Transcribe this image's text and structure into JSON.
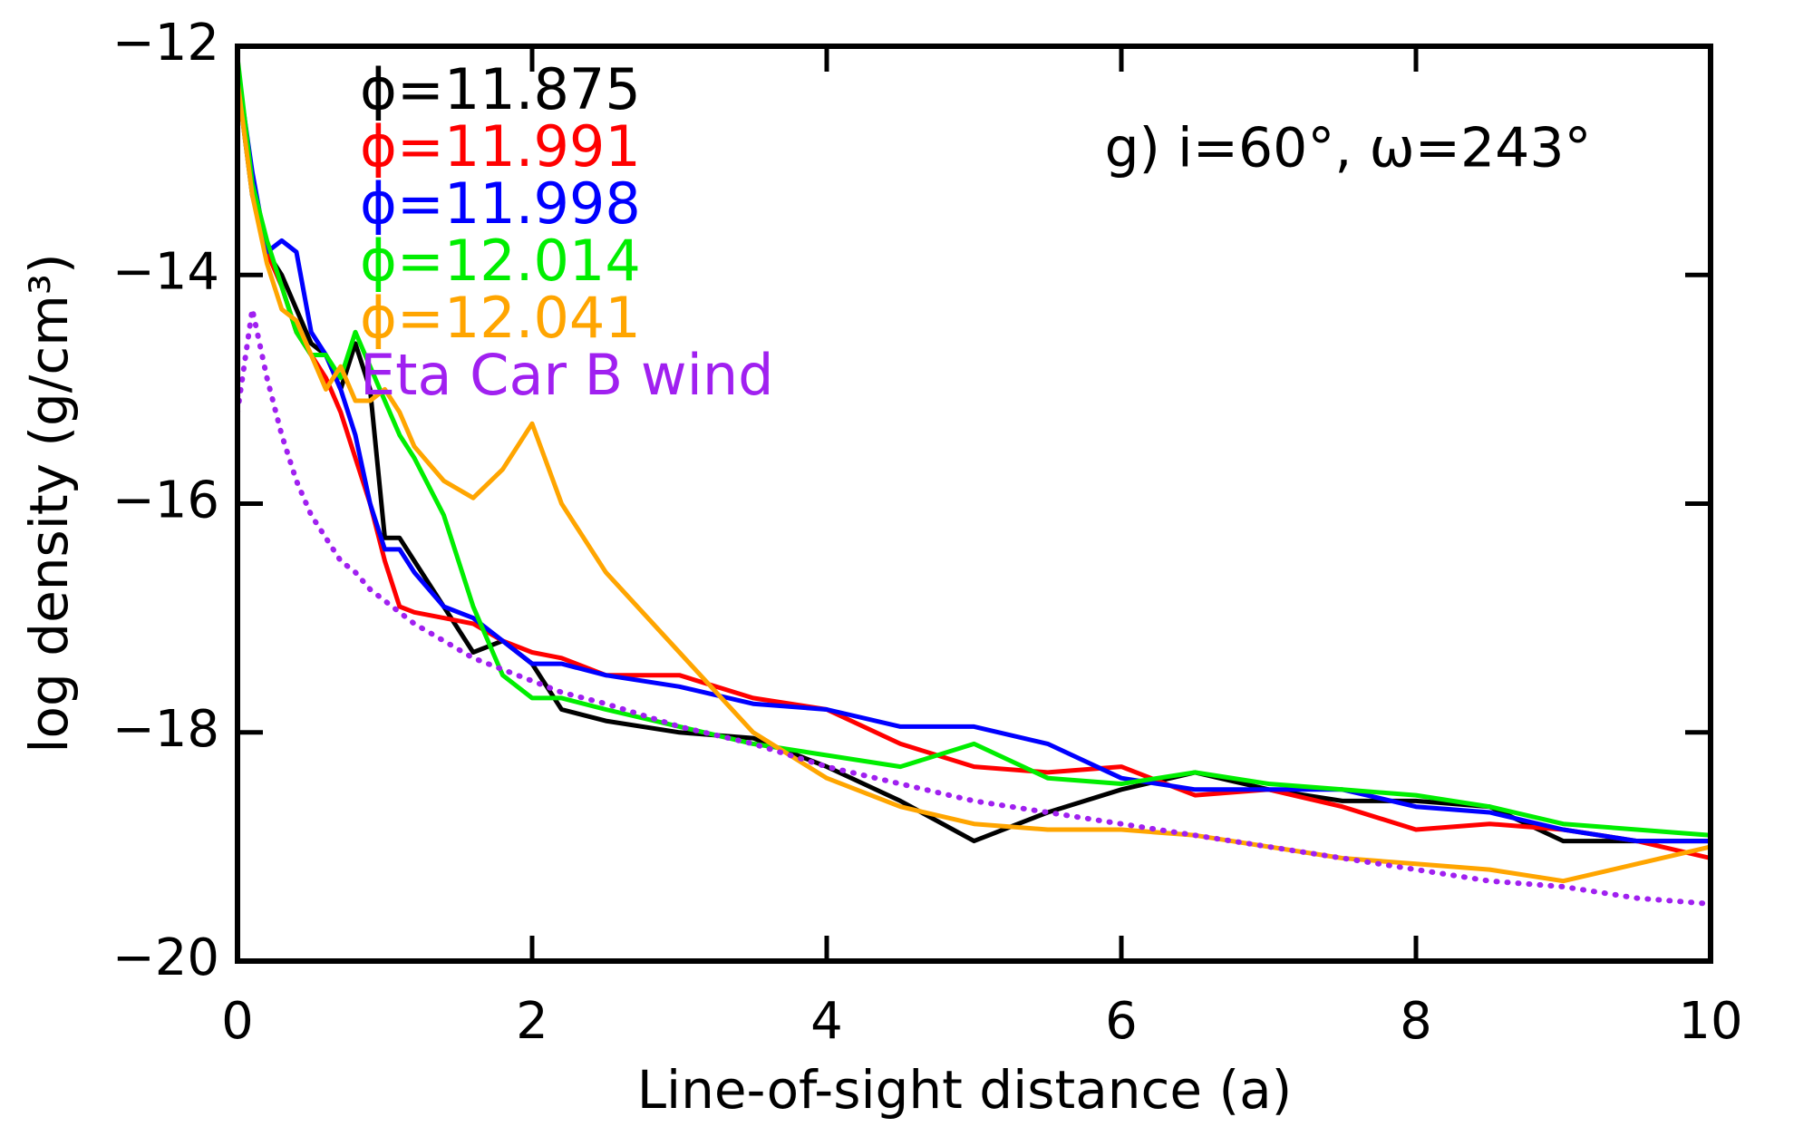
{
  "chart_data": {
    "type": "line",
    "x_label": "Line-of-sight distance (a)",
    "y_label": "log density (g/cm³)",
    "annotation": "g) i=60°, ω=243°",
    "xlim": [
      0,
      10
    ],
    "ylim": [
      -20,
      -12
    ],
    "xticks": [
      0,
      2,
      4,
      6,
      8,
      10
    ],
    "yticks": [
      {
        "value": -20,
        "label": "−20"
      },
      {
        "value": -18,
        "label": "−18"
      },
      {
        "value": -16,
        "label": "−16"
      },
      {
        "value": -14,
        "label": "−14"
      },
      {
        "value": -12,
        "label": "−12"
      }
    ],
    "x": [
      0,
      0.1,
      0.2,
      0.3,
      0.4,
      0.5,
      0.6,
      0.7,
      0.8,
      0.9,
      1.0,
      1.1,
      1.2,
      1.4,
      1.6,
      1.8,
      2.0,
      2.2,
      2.5,
      3,
      3.5,
      4,
      4.5,
      5,
      5.5,
      6,
      6.5,
      7,
      7.5,
      8,
      8.5,
      9,
      9.5,
      10
    ],
    "series": [
      {
        "name": "ϕ=11.875",
        "color": "#000000",
        "style": "solid",
        "values": [
          -12.3,
          -13.3,
          -13.8,
          -14.0,
          -14.3,
          -14.6,
          -14.7,
          -15.0,
          -14.6,
          -15.0,
          -16.3,
          -16.3,
          -16.5,
          -16.9,
          -17.3,
          -17.2,
          -17.4,
          -17.8,
          -17.9,
          -18.0,
          -18.05,
          -18.3,
          -18.6,
          -18.95,
          -18.7,
          -18.5,
          -18.35,
          -18.5,
          -18.6,
          -18.6,
          -18.65,
          -18.95,
          -18.95,
          -18.95
        ]
      },
      {
        "name": "ϕ=11.991",
        "color": "#ff0000",
        "style": "solid",
        "values": [
          -12.3,
          -13.2,
          -13.8,
          -14.1,
          -14.5,
          -14.7,
          -14.9,
          -15.2,
          -15.6,
          -16.0,
          -16.5,
          -16.9,
          -16.95,
          -17.0,
          -17.05,
          -17.2,
          -17.3,
          -17.35,
          -17.5,
          -17.5,
          -17.7,
          -17.8,
          -18.1,
          -18.3,
          -18.35,
          -18.3,
          -18.55,
          -18.5,
          -18.65,
          -18.85,
          -18.8,
          -18.85,
          -18.95,
          -19.1
        ]
      },
      {
        "name": "ϕ=11.998",
        "color": "#0000ff",
        "style": "solid",
        "values": [
          -12.2,
          -13.1,
          -13.8,
          -13.7,
          -13.8,
          -14.5,
          -14.7,
          -15.0,
          -15.4,
          -16.0,
          -16.4,
          -16.4,
          -16.6,
          -16.9,
          -17.0,
          -17.2,
          -17.4,
          -17.4,
          -17.5,
          -17.6,
          -17.75,
          -17.8,
          -17.95,
          -17.95,
          -18.1,
          -18.4,
          -18.5,
          -18.5,
          -18.5,
          -18.65,
          -18.7,
          -18.85,
          -18.95,
          -18.95
        ]
      },
      {
        "name": "ϕ=12.014",
        "color": "#00ee00",
        "style": "solid",
        "values": [
          -12.1,
          -13.2,
          -13.7,
          -14.1,
          -14.5,
          -14.7,
          -14.7,
          -14.9,
          -14.5,
          -14.8,
          -15.1,
          -15.4,
          -15.6,
          -16.1,
          -16.9,
          -17.5,
          -17.7,
          -17.7,
          -17.8,
          -17.95,
          -18.1,
          -18.2,
          -18.3,
          -18.1,
          -18.4,
          -18.45,
          -18.35,
          -18.45,
          -18.5,
          -18.55,
          -18.65,
          -18.8,
          -18.85,
          -18.9
        ]
      },
      {
        "name": "ϕ=12.041",
        "color": "#ffa500",
        "style": "solid",
        "values": [
          -12.3,
          -13.3,
          -13.9,
          -14.3,
          -14.4,
          -14.7,
          -15.0,
          -14.8,
          -15.1,
          -15.1,
          -15.0,
          -15.2,
          -15.5,
          -15.8,
          -15.95,
          -15.7,
          -15.3,
          -16.0,
          -16.6,
          -17.3,
          -18.0,
          -18.4,
          -18.65,
          -18.8,
          -18.85,
          -18.85,
          -18.9,
          -19.0,
          -19.1,
          -19.15,
          -19.2,
          -19.3,
          -19.15,
          -19.0
        ]
      },
      {
        "name": "Eta Car B wind",
        "color": "#a020f0",
        "style": "dotted",
        "values": [
          -15.2,
          -14.3,
          -14.9,
          -15.4,
          -15.8,
          -16.1,
          -16.3,
          -16.5,
          -16.6,
          -16.75,
          -16.85,
          -16.95,
          -17.05,
          -17.2,
          -17.35,
          -17.45,
          -17.55,
          -17.65,
          -17.75,
          -17.95,
          -18.1,
          -18.3,
          -18.45,
          -18.6,
          -18.7,
          -18.8,
          -18.9,
          -19.0,
          -19.1,
          -19.2,
          -19.3,
          -19.35,
          -19.45,
          -19.5
        ]
      }
    ]
  }
}
